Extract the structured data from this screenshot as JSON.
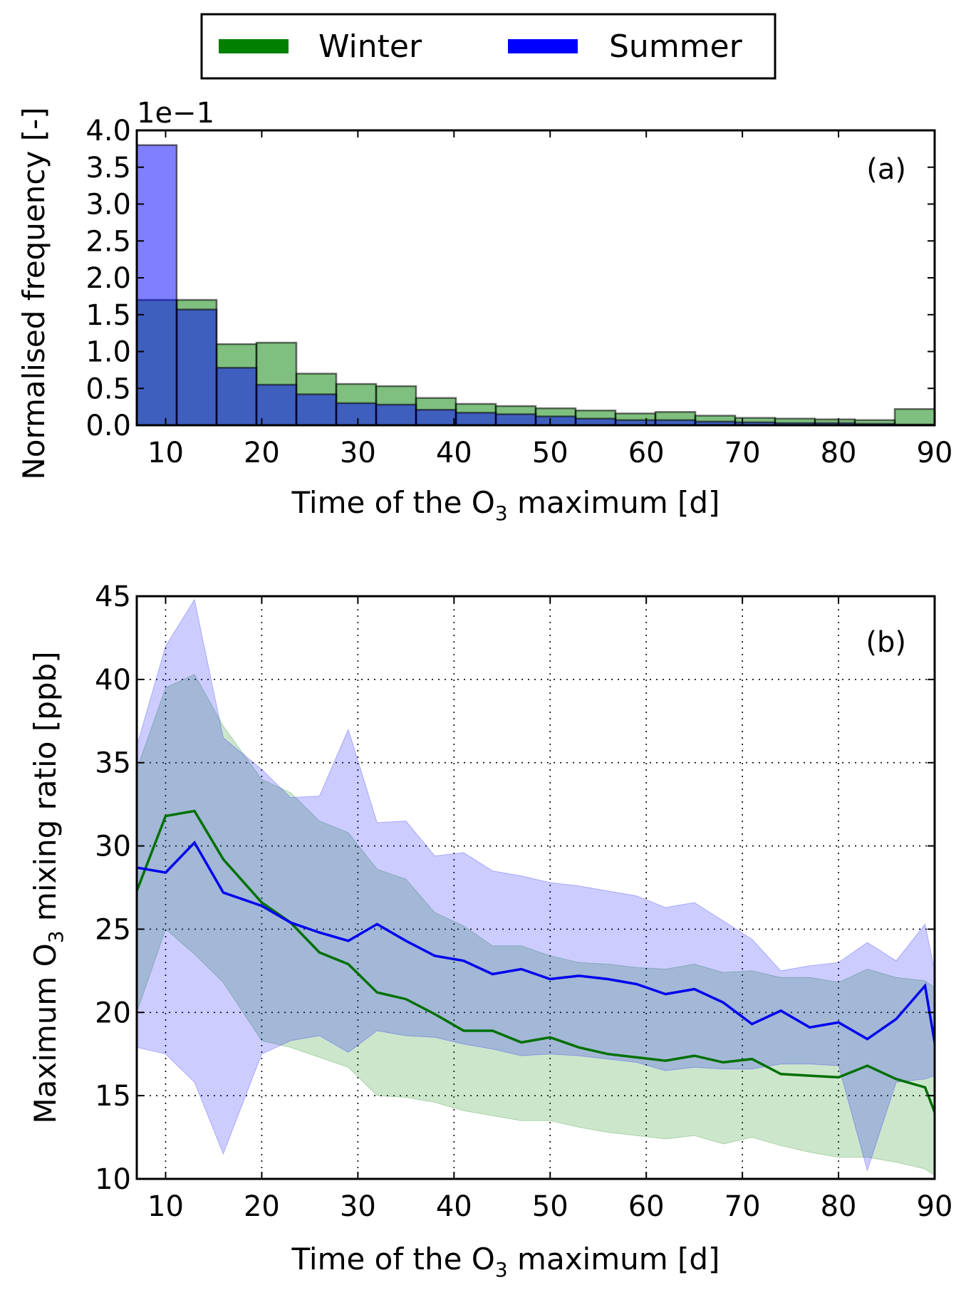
{
  "legend": {
    "items": [
      {
        "label": "Winter",
        "color": "#008000"
      },
      {
        "label": "Summer",
        "color": "#0000ff"
      }
    ]
  },
  "colors": {
    "winter_fill": "#008000",
    "summer_fill": "#0000ff",
    "winter_line": "#007000",
    "summer_line": "#0000ee"
  },
  "chart_data": [
    {
      "type": "bar",
      "panel_tag": "(a)",
      "xlabel_pre": "Time of the O",
      "xlabel_sub": "3",
      "xlabel_post": " maximum [d]",
      "ylabel": "Normalised frequency [-]",
      "y_exponent_label": "1e−1",
      "xlim": [
        7,
        90
      ],
      "ylim": [
        0,
        4.0
      ],
      "xticks": [
        10,
        20,
        30,
        40,
        50,
        60,
        70,
        80,
        90
      ],
      "yticks": [
        0.0,
        0.5,
        1.0,
        1.5,
        2.0,
        2.5,
        3.0,
        3.5,
        4.0
      ],
      "ytick_labels": [
        "0.0",
        "0.5",
        "1.0",
        "1.5",
        "2.0",
        "2.5",
        "3.0",
        "3.5",
        "4.0"
      ],
      "bin_edges": [
        7,
        11.15,
        15.3,
        19.45,
        23.6,
        27.75,
        31.9,
        36.05,
        40.2,
        44.35,
        48.5,
        52.65,
        56.8,
        60.95,
        65.1,
        69.25,
        73.4,
        77.55,
        81.7,
        85.85,
        90
      ],
      "series": [
        {
          "name": "Winter",
          "values": [
            1.7,
            1.7,
            1.1,
            1.12,
            0.7,
            0.56,
            0.53,
            0.37,
            0.29,
            0.26,
            0.23,
            0.2,
            0.16,
            0.18,
            0.13,
            0.1,
            0.09,
            0.08,
            0.07,
            0.22
          ]
        },
        {
          "name": "Summer",
          "values": [
            3.8,
            1.57,
            0.78,
            0.55,
            0.42,
            0.3,
            0.28,
            0.21,
            0.17,
            0.15,
            0.12,
            0.09,
            0.07,
            0.07,
            0.05,
            0.04,
            0.03,
            0.03,
            0.02,
            0.01
          ]
        }
      ]
    },
    {
      "type": "line",
      "panel_tag": "(b)",
      "xlabel_pre": "Time of the O",
      "xlabel_sub": "3",
      "xlabel_post": " maximum [d]",
      "ylabel_pre": "Maximum O",
      "ylabel_sub": "3",
      "ylabel_post": " mixing ratio [ppb]",
      "xlim": [
        7,
        90
      ],
      "ylim": [
        10,
        45
      ],
      "xticks": [
        10,
        20,
        30,
        40,
        50,
        60,
        70,
        80,
        90
      ],
      "yticks": [
        10,
        15,
        20,
        25,
        30,
        35,
        40,
        45
      ],
      "grid": true,
      "x": [
        7,
        10,
        13,
        16,
        20,
        23,
        26,
        29,
        32,
        35,
        38,
        41,
        44,
        47,
        50,
        53,
        56,
        59,
        62,
        65,
        68,
        71,
        74,
        77,
        80,
        83,
        86,
        89,
        90
      ],
      "series": [
        {
          "name": "Winter",
          "values": [
            27.3,
            31.8,
            32.1,
            29.2,
            26.6,
            25.4,
            23.6,
            22.9,
            21.2,
            20.8,
            19.9,
            18.9,
            18.9,
            18.2,
            18.5,
            17.9,
            17.5,
            17.3,
            17.1,
            17.4,
            17.0,
            17.2,
            16.3,
            16.2,
            16.1,
            16.8,
            16.0,
            15.5,
            14.0
          ],
          "upper": [
            34.6,
            39.5,
            40.3,
            37.2,
            34.0,
            33.2,
            31.5,
            30.8,
            28.6,
            28.0,
            26.0,
            25.2,
            24.0,
            24.0,
            23.4,
            23.0,
            22.9,
            22.7,
            22.6,
            22.9,
            22.4,
            22.5,
            22.1,
            22.1,
            21.8,
            22.6,
            22.1,
            21.9,
            21.5
          ],
          "lower": [
            20.0,
            25.0,
            23.5,
            21.8,
            18.3,
            17.9,
            17.3,
            16.7,
            15.0,
            14.9,
            14.6,
            14.1,
            13.8,
            13.5,
            13.5,
            13.1,
            12.8,
            12.6,
            12.4,
            12.6,
            12.1,
            12.5,
            12.0,
            11.6,
            11.3,
            11.3,
            11.0,
            10.6,
            10.2
          ]
        },
        {
          "name": "Summer",
          "values": [
            28.7,
            28.4,
            30.2,
            27.2,
            26.4,
            25.4,
            24.8,
            24.3,
            25.3,
            24.3,
            23.4,
            23.1,
            22.3,
            22.6,
            22.0,
            22.2,
            22.0,
            21.7,
            21.1,
            21.4,
            20.6,
            19.3,
            20.1,
            19.1,
            19.4,
            18.4,
            19.6,
            21.6,
            18.2
          ],
          "upper": [
            36.0,
            42.0,
            44.8,
            36.5,
            34.6,
            32.9,
            33.0,
            37.0,
            31.4,
            31.5,
            29.4,
            29.6,
            28.5,
            28.2,
            27.8,
            27.6,
            27.3,
            27.0,
            26.3,
            26.6,
            25.5,
            24.4,
            22.5,
            22.8,
            23.0,
            24.2,
            23.1,
            25.3,
            22.5
          ],
          "lower": [
            17.9,
            17.5,
            15.8,
            11.5,
            17.5,
            18.3,
            18.6,
            17.6,
            18.9,
            18.6,
            18.5,
            18.1,
            17.8,
            17.4,
            17.5,
            17.4,
            17.2,
            17.0,
            16.5,
            16.7,
            16.6,
            16.6,
            16.9,
            16.9,
            16.8,
            10.5,
            15.8,
            16.0,
            16.2
          ]
        }
      ]
    }
  ]
}
